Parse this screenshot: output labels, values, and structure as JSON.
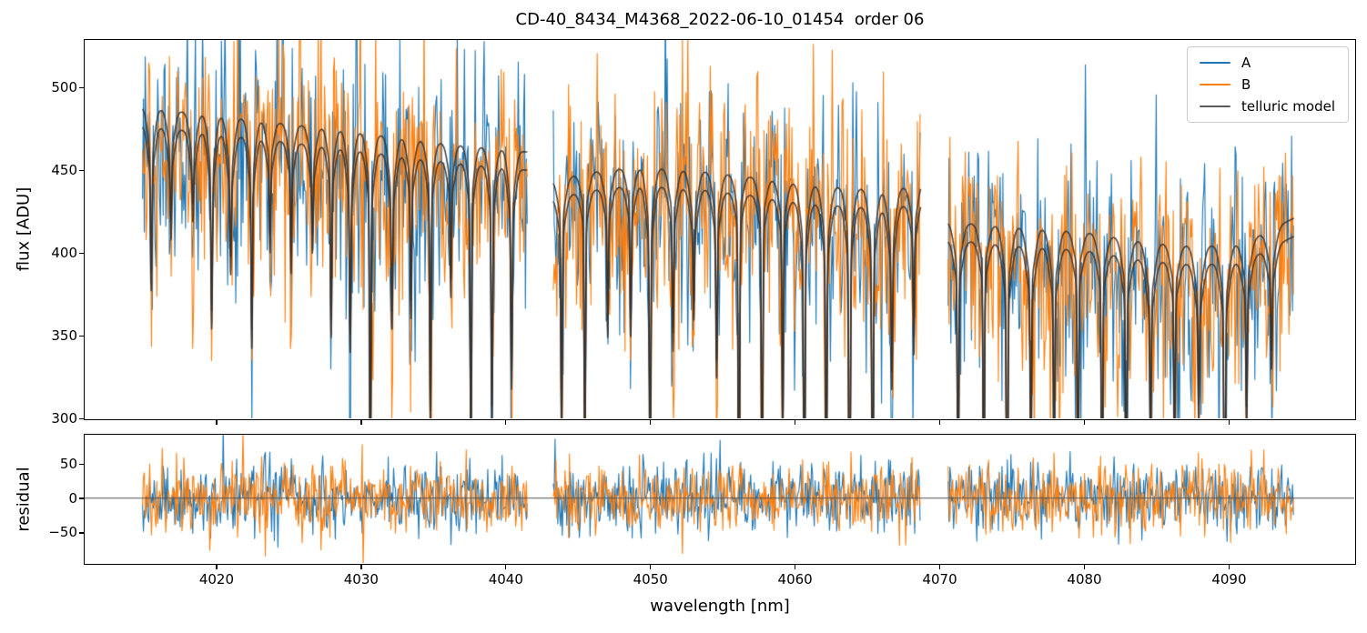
{
  "title": "CD-40_8434_M4368_2022-06-10_01454  order 06",
  "chart_data": {
    "type": "line",
    "title": "CD-40_8434_M4368_2022-06-10_01454  order 06",
    "xlabel": "wavelength [nm]",
    "xlim": [
      4010.9,
      4098.7
    ],
    "xticks": [
      4020,
      4030,
      4040,
      4050,
      4060,
      4070,
      4080,
      4090
    ],
    "panels": {
      "flux": {
        "ylabel": "flux [ADU]",
        "ylim": [
          300,
          528.6
        ],
        "yticks": [
          300,
          350,
          400,
          450,
          500
        ],
        "grid": false
      },
      "residual": {
        "ylabel": "residual",
        "ylim": [
          -94.7,
          92.1
        ],
        "yticks": [
          -50,
          0,
          50
        ],
        "zero_line": true,
        "grid": false
      }
    },
    "legend": {
      "location": "upper right",
      "entries": [
        {
          "label": "A",
          "color": "#1f77b4"
        },
        {
          "label": "B",
          "color": "#ff7f0e"
        },
        {
          "label": "telluric model",
          "color": "#595959"
        }
      ]
    },
    "series": [
      {
        "name": "A",
        "color": "#1f77b4",
        "role": "observed-spectrum"
      },
      {
        "name": "B",
        "color": "#ff7f0e",
        "role": "observed-spectrum"
      },
      {
        "name": "telluric model",
        "color": "#35302c",
        "role": "model",
        "curves": 2
      }
    ],
    "segments": [
      {
        "x_start": 4014.9,
        "x_end": 4041.5,
        "continuum": [
          [
            4014.9,
            488
          ],
          [
            4021,
            482
          ],
          [
            4028,
            475
          ],
          [
            4035,
            467
          ],
          [
            4041.5,
            461
          ]
        ],
        "line_spacing": 1.38,
        "deep_fraction": 0.5,
        "core_depth": [
          40,
          80
        ],
        "core_depth_deep": [
          90,
          190
        ],
        "depth_ramp": [
          0.55,
          1.3
        ]
      },
      {
        "x_start": 4043.3,
        "x_end": 4068.7,
        "continuum": [
          [
            4043.3,
            444
          ],
          [
            4046,
            449
          ],
          [
            4049,
            452
          ],
          [
            4053,
            450
          ],
          [
            4057,
            446
          ],
          [
            4061,
            441
          ],
          [
            4064.5,
            439
          ],
          [
            4066.5,
            437
          ],
          [
            4068.7,
            443
          ]
        ],
        "line_spacing": 1.52,
        "deep_fraction": 0.7,
        "core_depth": [
          50,
          90
        ],
        "core_depth_deep": [
          110,
          220
        ],
        "depth_ramp": [
          1.0,
          1.0
        ]
      },
      {
        "x_start": 4070.6,
        "x_end": 4094.5,
        "continuum": [
          [
            4070.6,
            419
          ],
          [
            4075,
            416
          ],
          [
            4080,
            413
          ],
          [
            4084,
            407
          ],
          [
            4088,
            404
          ],
          [
            4091,
            406
          ],
          [
            4094.5,
            421
          ]
        ],
        "line_spacing": 1.66,
        "deep_fraction": 0.75,
        "core_depth": [
          50,
          90
        ],
        "core_depth_deep": [
          100,
          200
        ],
        "depth_ramp": [
          1.0,
          1.0
        ]
      }
    ],
    "telluric_model": {
      "curve_offset": -11,
      "broad_depth": [
        20,
        35
      ],
      "broad_sigma_factor": 0.17,
      "core_sigma": 0.05,
      "sample_step": 0.02,
      "line_width": 1.6
    },
    "noise": {
      "seed": 11,
      "flux_sigma": 36,
      "flux_center_offset": -8,
      "residual_sigma": 26,
      "spike_fraction": 0.02,
      "spike_gain": 1.7,
      "sample_step": 0.062,
      "line_width": 1.1
    },
    "zero_line_color": "#4d4d4d",
    "background": "#ffffff",
    "text_color": "#000000"
  }
}
